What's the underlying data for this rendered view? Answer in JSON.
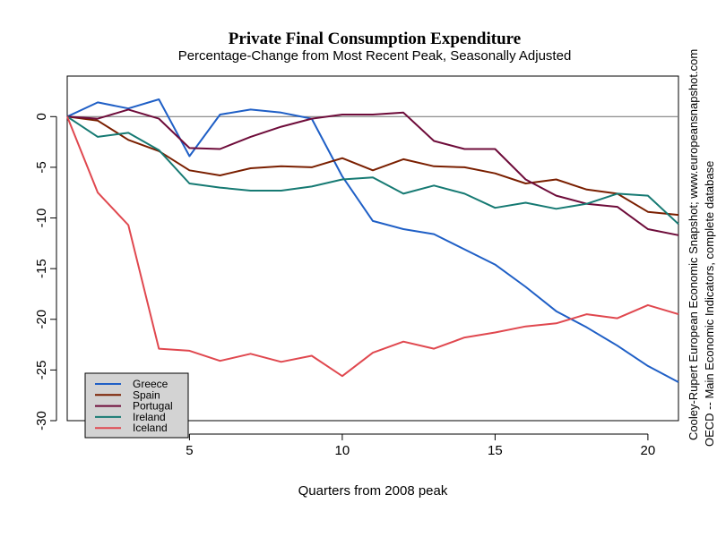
{
  "chart_data": {
    "type": "line",
    "title": "Private Final Consumption Expenditure",
    "subtitle": "Percentage-Change from Most Recent Peak, Seasonally Adjusted",
    "xlabel": "Quarters from 2008 peak",
    "ylabel": "",
    "xlim": [
      1,
      21
    ],
    "ylim": [
      -30,
      4
    ],
    "x_ticks": [
      5,
      10,
      15,
      20
    ],
    "y_ticks": [
      0,
      -5,
      -10,
      -15,
      -20,
      -25,
      -30
    ],
    "reference_line_y": 0,
    "grid": false,
    "legend_position": "bottom-left",
    "side_notes": [
      "Cooley-Rupert European Economic Snapshot; www.europeansnapshot.com",
      "OECD -- Main Economic Indicators, complete database"
    ],
    "x": [
      1,
      2,
      3,
      4,
      5,
      6,
      7,
      8,
      9,
      10,
      11,
      12,
      13,
      14,
      15,
      16,
      17,
      18,
      19,
      20,
      21
    ],
    "series": [
      {
        "name": "Greece",
        "color": "#1f5fc6",
        "values": [
          0,
          1.4,
          0.8,
          1.7,
          -3.9,
          0.2,
          0.7,
          0.4,
          -0.2,
          -5.9,
          -10.3,
          -11.1,
          -11.6,
          -13.1,
          -14.6,
          -16.8,
          -19.2,
          -20.8,
          -22.6,
          -24.6,
          -26.2
        ]
      },
      {
        "name": "Spain",
        "color": "#7a1f00",
        "values": [
          0,
          -0.4,
          -2.3,
          -3.4,
          -5.3,
          -5.8,
          -5.1,
          -4.9,
          -5.0,
          -4.1,
          -5.3,
          -4.2,
          -4.9,
          -5.0,
          -5.6,
          -6.6,
          -6.2,
          -7.2,
          -7.6,
          -9.4,
          -9.7
        ]
      },
      {
        "name": "Portugal",
        "color": "#6e0c3a",
        "values": [
          0,
          -0.2,
          0.7,
          -0.2,
          -3.1,
          -3.2,
          -2.0,
          -1.0,
          -0.2,
          0.2,
          0.2,
          0.4,
          -2.4,
          -3.2,
          -3.2,
          -6.2,
          -7.8,
          -8.6,
          -8.9,
          -11.1,
          -11.7
        ]
      },
      {
        "name": "Ireland",
        "color": "#167a73",
        "values": [
          0,
          -2.0,
          -1.6,
          -3.3,
          -6.6,
          -7.0,
          -7.3,
          -7.3,
          -6.9,
          -6.2,
          -6.0,
          -7.6,
          -6.8,
          -7.6,
          -9.0,
          -8.5,
          -9.1,
          -8.6,
          -7.6,
          -7.8,
          -10.6
        ]
      },
      {
        "name": "Iceland",
        "color": "#e0484f",
        "values": [
          0,
          -7.5,
          -10.7,
          -22.9,
          -23.1,
          -24.1,
          -23.4,
          -24.2,
          -23.6,
          -25.6,
          -23.3,
          -22.2,
          -22.9,
          -21.8,
          -21.3,
          -20.7,
          -20.4,
          -19.5,
          -19.9,
          -18.6,
          -19.5
        ]
      }
    ]
  }
}
